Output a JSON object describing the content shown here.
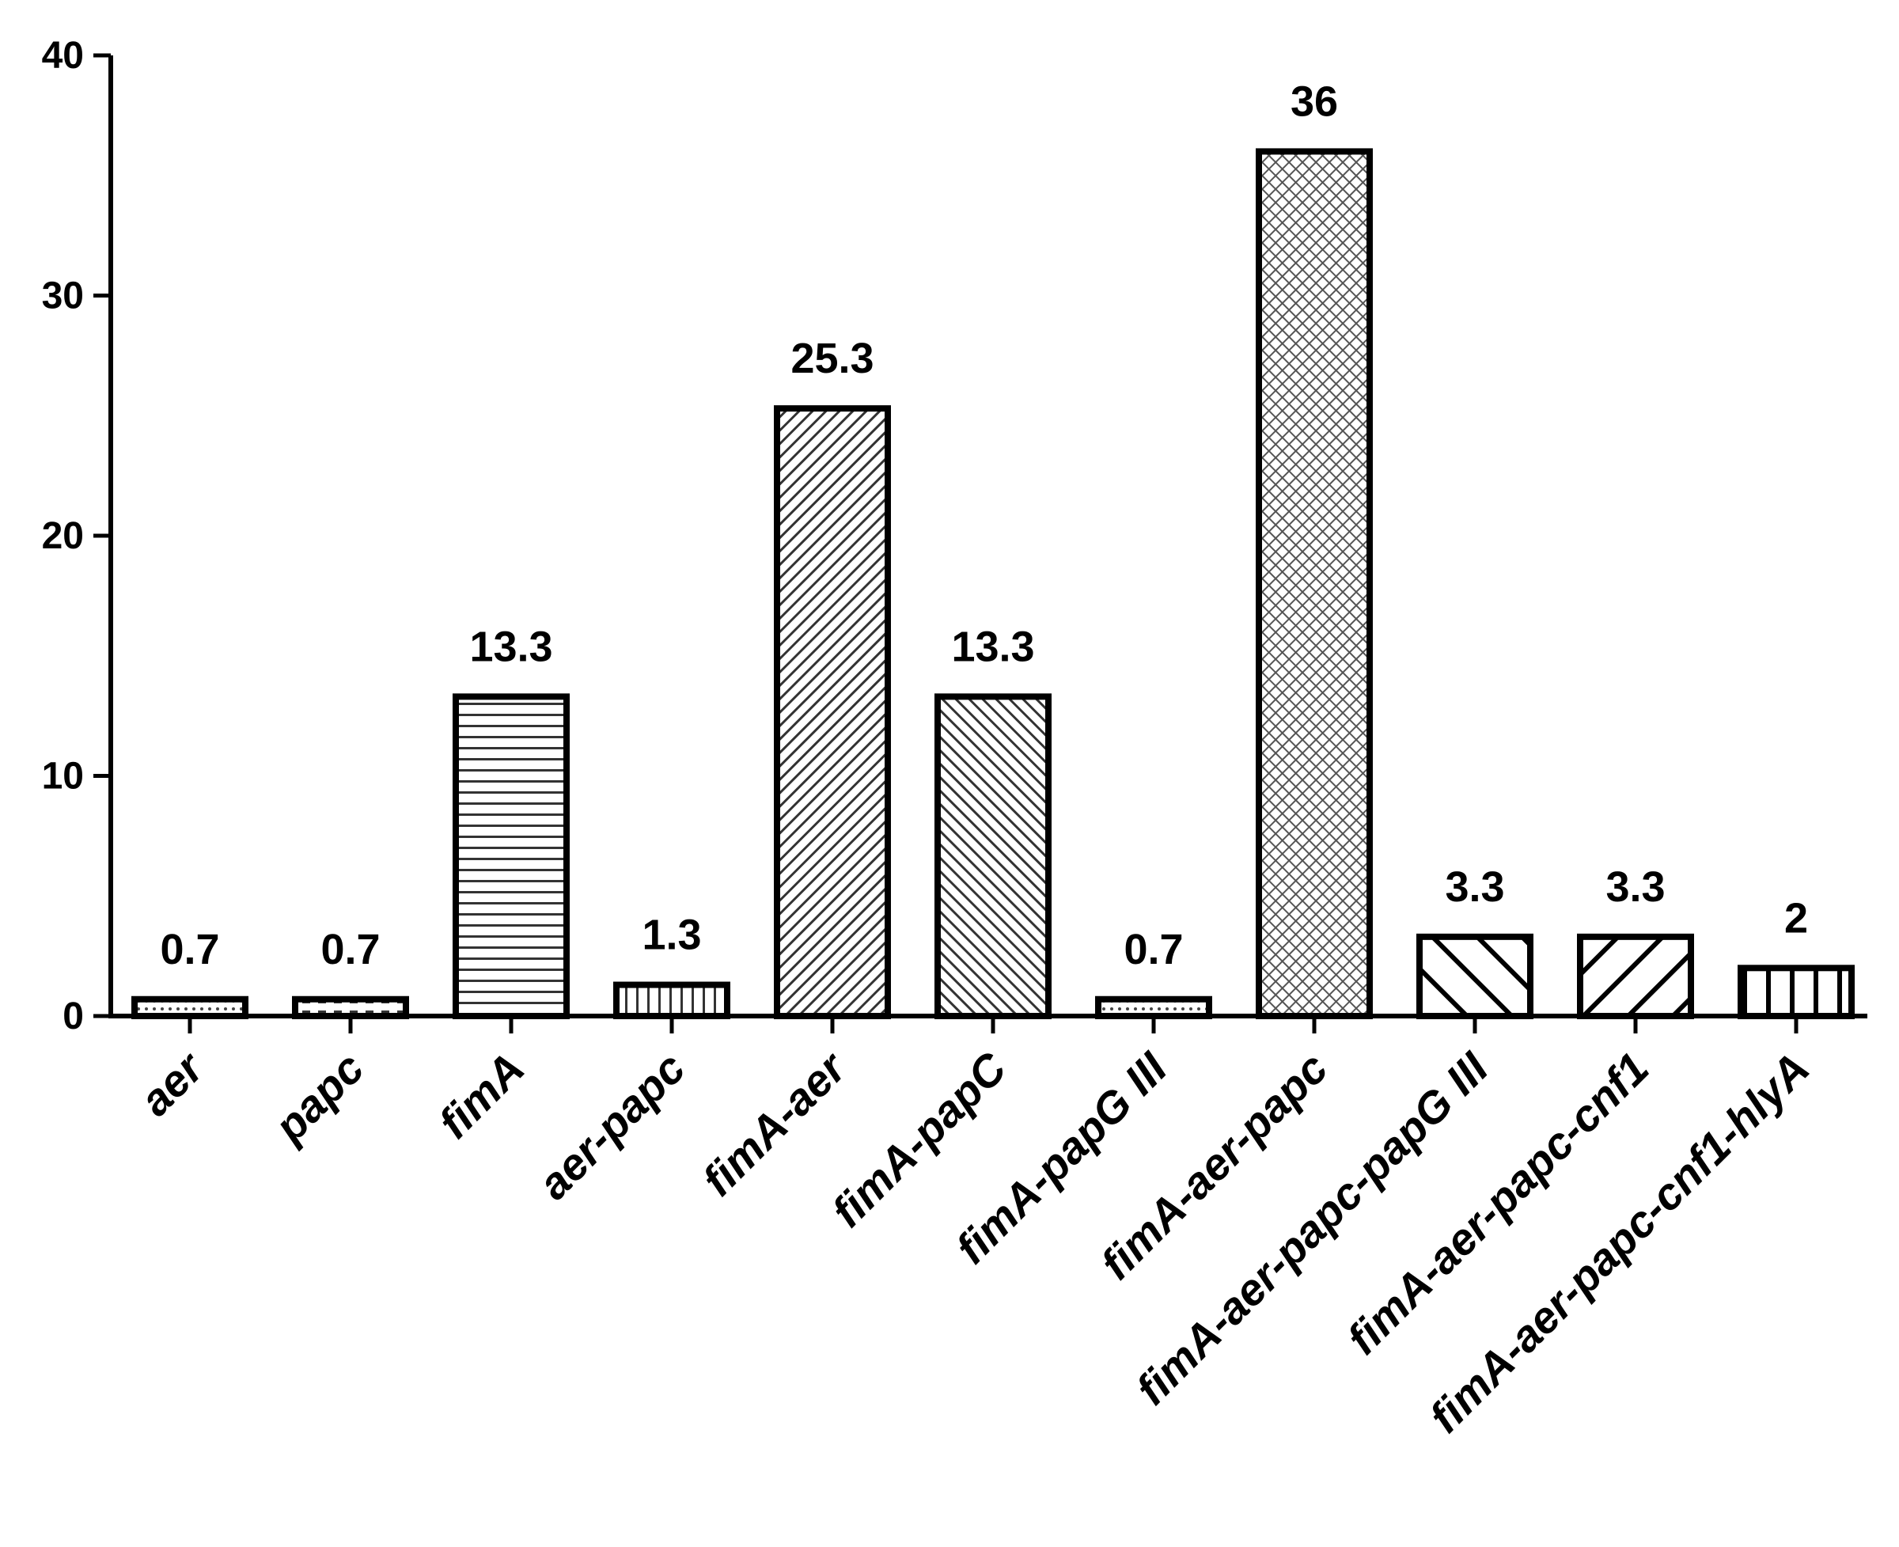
{
  "chart_data": {
    "type": "bar",
    "title": "",
    "xlabel": "",
    "ylabel": "",
    "ylim": [
      0,
      40
    ],
    "yticks": [
      0,
      10,
      20,
      30,
      40
    ],
    "grid": false,
    "legend": "none",
    "categories": [
      "aer",
      "papc",
      "fimA",
      "aer-papc",
      "fimA-aer",
      "fimA-papC",
      "fimA-papG III",
      "fimA-aer-papc",
      "fimA-aer-papc-papG III",
      "fimA-aer-papc-cnf1",
      "fimA-aer-papc-cnf1-hlyA"
    ],
    "values": [
      0.7,
      0.7,
      13.3,
      1.3,
      25.3,
      13.3,
      0.7,
      36,
      3.3,
      3.3,
      2
    ],
    "value_labels": [
      "0.7",
      "0.7",
      "13.3",
      "1.3",
      "25.3",
      "13.3",
      "0.7",
      "36",
      "3.3",
      "3.3",
      "2"
    ],
    "bar_patterns": [
      "dots",
      "dashes",
      "horizontal-lines",
      "vertical-lines",
      "fine-diagonal-up",
      "fine-diagonal-down",
      "dots",
      "crosshatch",
      "wide-diagonal-down",
      "wide-diagonal-up",
      "wide-vertical-lines"
    ],
    "colors": {
      "stroke": "#000000",
      "fill": "#ffffff",
      "pattern": "#333333"
    }
  }
}
